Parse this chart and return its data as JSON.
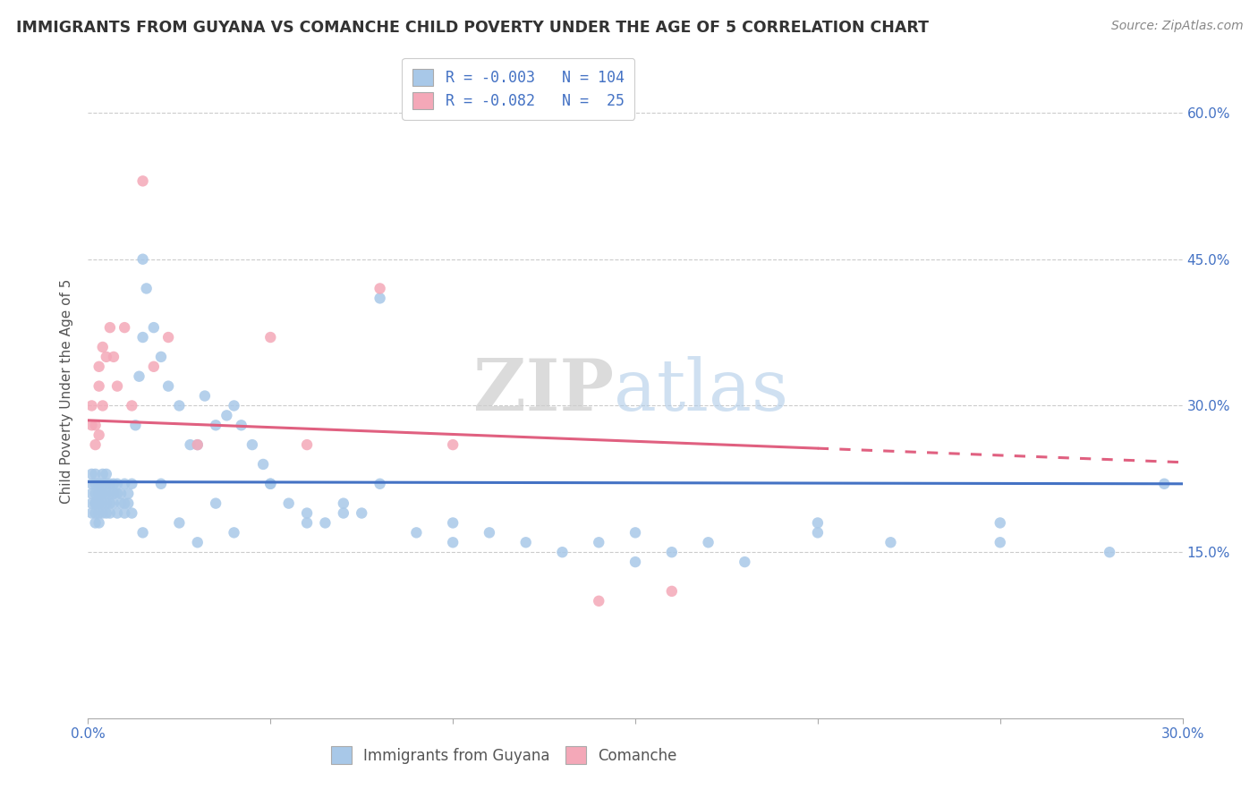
{
  "title": "IMMIGRANTS FROM GUYANA VS COMANCHE CHILD POVERTY UNDER THE AGE OF 5 CORRELATION CHART",
  "source": "Source: ZipAtlas.com",
  "ylabel": "Child Poverty Under the Age of 5",
  "xlim": [
    0.0,
    0.3
  ],
  "ylim": [
    -0.02,
    0.65
  ],
  "xtick_vals": [
    0.0,
    0.05,
    0.1,
    0.15,
    0.2,
    0.25,
    0.3
  ],
  "ytick_vals": [
    0.15,
    0.3,
    0.45,
    0.6
  ],
  "ytick_labels": [
    "15.0%",
    "30.0%",
    "45.0%",
    "60.0%"
  ],
  "color_blue": "#a8c8e8",
  "color_pink": "#f4a8b8",
  "line_blue": "#4472c4",
  "line_pink": "#e06080",
  "legend_r1": "R = -0.003",
  "legend_n1": "N = 104",
  "legend_r2": "R = -0.082",
  "legend_n2": "N =  25",
  "blue_line_y0": 0.222,
  "blue_line_y1": 0.22,
  "pink_line_y0": 0.285,
  "pink_line_y1": 0.242,
  "blue_x": [
    0.001,
    0.001,
    0.001,
    0.001,
    0.001,
    0.002,
    0.002,
    0.002,
    0.002,
    0.002,
    0.002,
    0.002,
    0.003,
    0.003,
    0.003,
    0.003,
    0.003,
    0.003,
    0.003,
    0.003,
    0.004,
    0.004,
    0.004,
    0.004,
    0.004,
    0.004,
    0.005,
    0.005,
    0.005,
    0.005,
    0.005,
    0.006,
    0.006,
    0.006,
    0.006,
    0.007,
    0.007,
    0.007,
    0.008,
    0.008,
    0.008,
    0.009,
    0.009,
    0.01,
    0.01,
    0.01,
    0.011,
    0.011,
    0.012,
    0.012,
    0.013,
    0.014,
    0.015,
    0.015,
    0.016,
    0.018,
    0.02,
    0.022,
    0.025,
    0.028,
    0.03,
    0.032,
    0.035,
    0.038,
    0.04,
    0.042,
    0.045,
    0.048,
    0.05,
    0.055,
    0.06,
    0.065,
    0.07,
    0.075,
    0.08,
    0.09,
    0.1,
    0.11,
    0.12,
    0.13,
    0.14,
    0.15,
    0.16,
    0.17,
    0.18,
    0.2,
    0.22,
    0.25,
    0.28,
    0.295,
    0.015,
    0.02,
    0.025,
    0.03,
    0.035,
    0.04,
    0.05,
    0.06,
    0.07,
    0.08,
    0.1,
    0.15,
    0.2,
    0.25
  ],
  "blue_y": [
    0.2,
    0.22,
    0.21,
    0.23,
    0.19,
    0.2,
    0.21,
    0.22,
    0.23,
    0.2,
    0.18,
    0.19,
    0.21,
    0.2,
    0.22,
    0.19,
    0.21,
    0.2,
    0.18,
    0.22,
    0.21,
    0.2,
    0.22,
    0.19,
    0.23,
    0.21,
    0.2,
    0.22,
    0.19,
    0.21,
    0.23,
    0.2,
    0.22,
    0.21,
    0.19,
    0.2,
    0.22,
    0.21,
    0.19,
    0.21,
    0.22,
    0.2,
    0.21,
    0.22,
    0.2,
    0.19,
    0.21,
    0.2,
    0.22,
    0.19,
    0.28,
    0.33,
    0.45,
    0.37,
    0.42,
    0.38,
    0.35,
    0.32,
    0.3,
    0.26,
    0.26,
    0.31,
    0.28,
    0.29,
    0.3,
    0.28,
    0.26,
    0.24,
    0.22,
    0.2,
    0.19,
    0.18,
    0.2,
    0.19,
    0.41,
    0.17,
    0.18,
    0.17,
    0.16,
    0.15,
    0.16,
    0.14,
    0.15,
    0.16,
    0.14,
    0.17,
    0.16,
    0.18,
    0.15,
    0.22,
    0.17,
    0.22,
    0.18,
    0.16,
    0.2,
    0.17,
    0.22,
    0.18,
    0.19,
    0.22,
    0.16,
    0.17,
    0.18,
    0.16
  ],
  "pink_x": [
    0.001,
    0.001,
    0.002,
    0.002,
    0.003,
    0.003,
    0.003,
    0.004,
    0.004,
    0.005,
    0.006,
    0.007,
    0.008,
    0.01,
    0.012,
    0.015,
    0.018,
    0.022,
    0.03,
    0.05,
    0.06,
    0.08,
    0.1,
    0.14,
    0.16
  ],
  "pink_y": [
    0.28,
    0.3,
    0.26,
    0.28,
    0.34,
    0.32,
    0.27,
    0.36,
    0.3,
    0.35,
    0.38,
    0.35,
    0.32,
    0.38,
    0.3,
    0.53,
    0.34,
    0.37,
    0.26,
    0.37,
    0.26,
    0.42,
    0.26,
    0.1,
    0.11
  ]
}
